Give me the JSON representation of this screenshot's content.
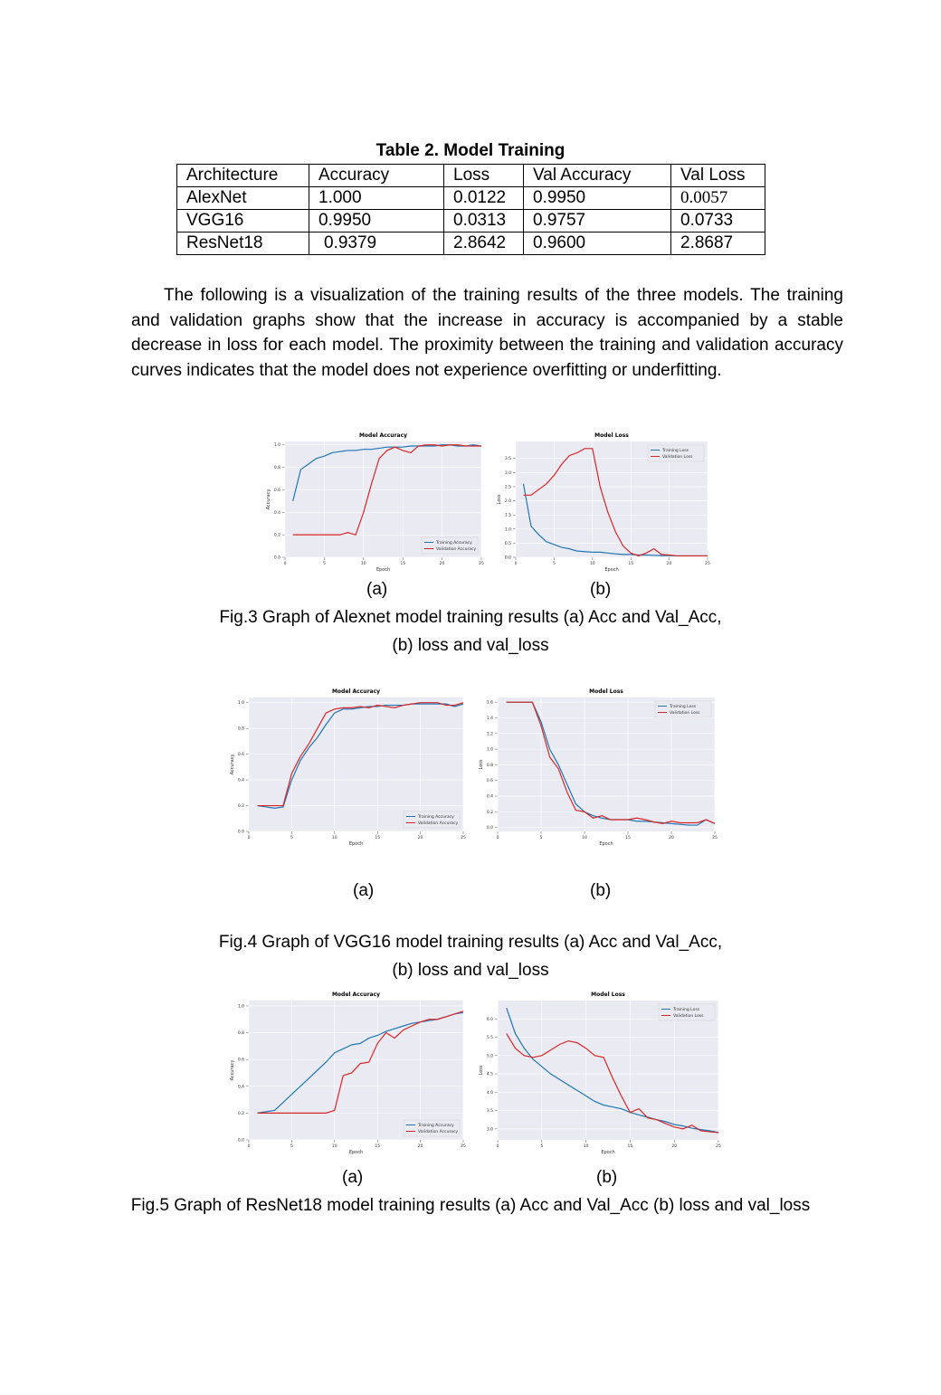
{
  "table": {
    "caption": "Table 2. Model Training",
    "header": [
      "Architecture",
      "Accuracy",
      "Loss",
      "Val Accuracy",
      "Val Loss"
    ],
    "rows": [
      [
        "AlexNet",
        "1.000",
        "0.0122",
        "0.9950",
        "0.0057"
      ],
      [
        "VGG16",
        "0.9950",
        "0.0313",
        "0.9757",
        "0.0733"
      ],
      [
        "ResNet18",
        "0.9379",
        "2.8642",
        "0.9600",
        "2.8687"
      ]
    ]
  },
  "paragraph": "The following is a visualization of the training results of the three models. The training and validation graphs show that the increase in accuracy is accompanied by a stable decrease in loss for each model. The proximity between the training and validation accuracy curves indicates that the model does not experience overfitting or underfitting.",
  "figures": [
    {
      "labels": [
        "(a)",
        "(b)"
      ],
      "caption": [
        "Fig.3 Graph of Alexnet model training results (a) Acc and Val_Acc,",
        "(b) loss and val_loss"
      ]
    },
    {
      "labels": [
        "(a)",
        "(b)"
      ],
      "caption": [
        "Fig.4 Graph of VGG16 model training results (a) Acc and Val_Acc,",
        "(b) loss and val_loss"
      ]
    },
    {
      "labels": [
        "(a)",
        "(b)"
      ],
      "caption": [
        "Fig.5 Graph of ResNet18 model training results (a) Acc and Val_Acc (b) loss and val_loss"
      ]
    }
  ],
  "chart_data": [
    {
      "type": "line",
      "title": "Model Accuracy",
      "xlabel": "Epoch",
      "ylabel": "Accuracy",
      "legend": "lower right",
      "x": [
        1,
        2,
        3,
        4,
        5,
        6,
        7,
        8,
        9,
        10,
        11,
        12,
        13,
        14,
        15,
        16,
        17,
        18,
        19,
        20,
        21,
        22,
        23,
        24,
        25
      ],
      "xlim": [
        0,
        25
      ],
      "xticks": [
        0,
        5,
        10,
        15,
        20,
        25
      ],
      "ylim": [
        0,
        1.03
      ],
      "yticks": [
        {
          "value": 0,
          "label": "0.0"
        },
        0.2,
        0.4,
        0.6,
        0.8,
        {
          "value": 1,
          "label": "1.0"
        }
      ],
      "series": [
        {
          "name": "Training Accuracy",
          "color": "#1f77b4",
          "values": [
            0.5,
            0.78,
            0.83,
            0.88,
            0.9,
            0.93,
            0.94,
            0.95,
            0.95,
            0.96,
            0.96,
            0.97,
            0.98,
            0.98,
            0.98,
            0.99,
            0.99,
            0.99,
            0.99,
            1.0,
            1.0,
            0.99,
            0.99,
            1.0,
            0.99
          ]
        },
        {
          "name": "Validation Accuracy",
          "color": "#d62728",
          "values": [
            0.2,
            0.2,
            0.2,
            0.2,
            0.2,
            0.2,
            0.2,
            0.22,
            0.2,
            0.4,
            0.65,
            0.88,
            0.95,
            0.98,
            0.95,
            0.93,
            0.99,
            1.0,
            1.0,
            0.99,
            1.0,
            1.0,
            0.99,
            0.99,
            0.99
          ]
        }
      ]
    },
    {
      "type": "line",
      "title": "Model Loss",
      "xlabel": "Epoch",
      "ylabel": "Loss",
      "legend": "upper right",
      "x": [
        1,
        2,
        3,
        4,
        5,
        6,
        7,
        8,
        9,
        10,
        11,
        12,
        13,
        14,
        15,
        16,
        17,
        18,
        19,
        20,
        21,
        22,
        23,
        24,
        25
      ],
      "xlim": [
        0,
        25
      ],
      "xticks": [
        0,
        5,
        10,
        15,
        20,
        25
      ],
      "ylim": [
        0,
        4.1
      ],
      "yticks": [
        {
          "value": 0,
          "label": "0.0"
        },
        0.5,
        {
          "value": 1,
          "label": "1.0"
        },
        1.5,
        {
          "value": 2,
          "label": "2.0"
        },
        2.5,
        {
          "value": 3,
          "label": "3.0"
        },
        3.5
      ],
      "series": [
        {
          "name": "Training Loss",
          "color": "#1f77b4",
          "values": [
            2.6,
            1.1,
            0.8,
            0.55,
            0.45,
            0.35,
            0.3,
            0.22,
            0.2,
            0.18,
            0.18,
            0.15,
            0.12,
            0.1,
            0.1,
            0.08,
            0.08,
            0.07,
            0.06,
            0.06,
            0.05,
            0.05,
            0.05,
            0.05,
            0.05
          ]
        },
        {
          "name": "Validation Loss",
          "color": "#d62728",
          "values": [
            2.2,
            2.2,
            2.4,
            2.6,
            2.9,
            3.3,
            3.6,
            3.7,
            3.85,
            3.85,
            2.5,
            1.6,
            0.9,
            0.4,
            0.15,
            0.05,
            0.15,
            0.3,
            0.1,
            0.08,
            0.05,
            0.05,
            0.05,
            0.05,
            0.05
          ]
        }
      ]
    },
    {
      "type": "line",
      "title": "Model Accuracy",
      "xlabel": "Epoch",
      "ylabel": "Accuracy",
      "legend": "lower right",
      "x": [
        1,
        2,
        3,
        4,
        5,
        6,
        7,
        8,
        9,
        10,
        11,
        12,
        13,
        14,
        15,
        16,
        17,
        18,
        19,
        20,
        21,
        22,
        23,
        24,
        25
      ],
      "xlim": [
        0,
        25
      ],
      "xticks": [
        0,
        5,
        10,
        15,
        20,
        25
      ],
      "ylim": [
        0,
        1.04
      ],
      "yticks": [
        {
          "value": 0,
          "label": "0.0"
        },
        0.2,
        0.4,
        0.6,
        0.8,
        {
          "value": 1,
          "label": "1.0"
        }
      ],
      "series": [
        {
          "name": "Training Accuracy",
          "color": "#1f77b4",
          "values": [
            0.2,
            0.19,
            0.18,
            0.19,
            0.4,
            0.55,
            0.65,
            0.73,
            0.83,
            0.92,
            0.95,
            0.95,
            0.96,
            0.97,
            0.97,
            0.98,
            0.98,
            0.98,
            0.99,
            0.99,
            0.99,
            0.99,
            0.99,
            0.97,
            0.99
          ]
        },
        {
          "name": "Validation Accuracy",
          "color": "#d62728",
          "values": [
            0.2,
            0.2,
            0.2,
            0.2,
            0.45,
            0.58,
            0.68,
            0.8,
            0.92,
            0.95,
            0.96,
            0.96,
            0.97,
            0.96,
            0.98,
            0.97,
            0.96,
            0.98,
            0.99,
            1.0,
            1.0,
            1.0,
            0.98,
            0.98,
            1.0
          ]
        }
      ]
    },
    {
      "type": "line",
      "title": "Model Loss",
      "xlabel": "Epoch",
      "ylabel": "Loss",
      "legend": "upper right",
      "x": [
        1,
        2,
        3,
        4,
        5,
        6,
        7,
        8,
        9,
        10,
        11,
        12,
        13,
        14,
        15,
        16,
        17,
        18,
        19,
        20,
        21,
        22,
        23,
        24,
        25
      ],
      "xlim": [
        0,
        25
      ],
      "xticks": [
        0,
        5,
        10,
        15,
        20,
        25
      ],
      "ylim": [
        -0.05,
        1.66
      ],
      "yticks": [
        {
          "value": 0,
          "label": "0.0"
        },
        0.2,
        0.4,
        0.6,
        0.8,
        {
          "value": 1,
          "label": "1.0"
        },
        1.2,
        1.4,
        1.6
      ],
      "series": [
        {
          "name": "Training Loss",
          "color": "#1f77b4",
          "values": [
            1.6,
            1.6,
            1.6,
            1.6,
            1.35,
            1.0,
            0.8,
            0.55,
            0.3,
            0.2,
            0.15,
            0.12,
            0.1,
            0.1,
            0.1,
            0.08,
            0.08,
            0.07,
            0.06,
            0.05,
            0.04,
            0.03,
            0.03,
            0.1,
            0.05
          ]
        },
        {
          "name": "Validation Loss",
          "color": "#d62728",
          "values": [
            1.6,
            1.6,
            1.6,
            1.6,
            1.3,
            0.9,
            0.75,
            0.45,
            0.22,
            0.2,
            0.12,
            0.15,
            0.1,
            0.1,
            0.1,
            0.12,
            0.1,
            0.07,
            0.05,
            0.08,
            0.06,
            0.06,
            0.06,
            0.1,
            0.05
          ]
        }
      ]
    },
    {
      "type": "line",
      "title": "Model Accuracy",
      "xlabel": "Epoch",
      "ylabel": "Accuracy",
      "legend": "lower right",
      "x": [
        1,
        2,
        3,
        4,
        5,
        6,
        7,
        8,
        9,
        10,
        11,
        12,
        13,
        14,
        15,
        16,
        17,
        18,
        19,
        20,
        21,
        22,
        23,
        24,
        25
      ],
      "xlim": [
        0,
        25
      ],
      "xticks": [
        0,
        5,
        10,
        15,
        20,
        25
      ],
      "ylim": [
        0,
        1.04
      ],
      "yticks": [
        {
          "value": 0,
          "label": "0.0"
        },
        0.2,
        0.4,
        0.6,
        0.8,
        {
          "value": 1,
          "label": "1.0"
        }
      ],
      "series": [
        {
          "name": "Training Accuracy",
          "color": "#1f77b4",
          "values": [
            0.2,
            0.21,
            0.22,
            0.28,
            0.34,
            0.4,
            0.46,
            0.52,
            0.58,
            0.65,
            0.68,
            0.71,
            0.72,
            0.76,
            0.78,
            0.81,
            0.83,
            0.85,
            0.87,
            0.88,
            0.89,
            0.9,
            0.92,
            0.94,
            0.95
          ]
        },
        {
          "name": "Validation Accuracy",
          "color": "#d62728",
          "values": [
            0.2,
            0.2,
            0.2,
            0.2,
            0.2,
            0.2,
            0.2,
            0.2,
            0.2,
            0.22,
            0.48,
            0.5,
            0.57,
            0.58,
            0.72,
            0.8,
            0.76,
            0.82,
            0.85,
            0.88,
            0.9,
            0.9,
            0.92,
            0.94,
            0.96
          ]
        }
      ]
    },
    {
      "type": "line",
      "title": "Model Loss",
      "xlabel": "Epoch",
      "ylabel": "Loss",
      "legend": "upper right",
      "x": [
        1,
        2,
        3,
        4,
        5,
        6,
        7,
        8,
        9,
        10,
        11,
        12,
        13,
        14,
        15,
        16,
        17,
        18,
        19,
        20,
        21,
        22,
        23,
        24,
        25
      ],
      "xlim": [
        0,
        25
      ],
      "xticks": [
        0,
        5,
        10,
        15,
        20,
        25
      ],
      "ylim": [
        2.7,
        6.5
      ],
      "yticks": [
        {
          "value": 3,
          "label": "3.0"
        },
        3.5,
        {
          "value": 4,
          "label": "4.0"
        },
        4.5,
        {
          "value": 5,
          "label": "5.0"
        },
        5.5,
        {
          "value": 6,
          "label": "6.0"
        }
      ],
      "series": [
        {
          "name": "Training Loss",
          "color": "#1f77b4",
          "values": [
            6.3,
            5.6,
            5.2,
            4.9,
            4.7,
            4.5,
            4.35,
            4.2,
            4.05,
            3.9,
            3.75,
            3.65,
            3.6,
            3.55,
            3.45,
            3.38,
            3.32,
            3.25,
            3.2,
            3.12,
            3.08,
            3.02,
            2.98,
            2.95,
            2.9
          ]
        },
        {
          "name": "Validation Loss",
          "color": "#d62728",
          "values": [
            5.6,
            5.2,
            5.0,
            4.95,
            5.0,
            5.15,
            5.3,
            5.4,
            5.35,
            5.2,
            5.0,
            4.95,
            4.4,
            3.9,
            3.45,
            3.55,
            3.3,
            3.25,
            3.15,
            3.05,
            3.0,
            3.1,
            2.95,
            2.92,
            2.9
          ]
        }
      ]
    }
  ]
}
